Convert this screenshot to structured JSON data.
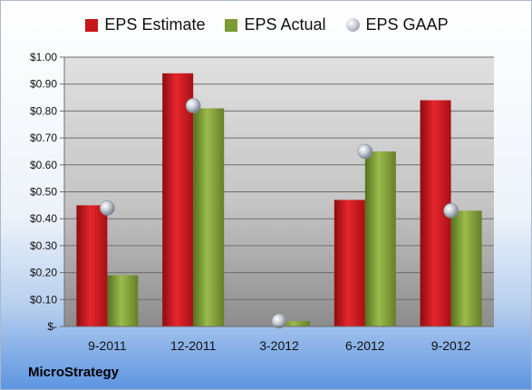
{
  "colors": {
    "estimate": "#c8161d",
    "actual": "#7c9a35",
    "gaap": "#b8bec8"
  },
  "legend": [
    {
      "label": "EPS Estimate",
      "key": "estimate"
    },
    {
      "label": "EPS Actual",
      "key": "actual"
    },
    {
      "label": "EPS GAAP",
      "key": "gaap"
    }
  ],
  "company": "MicroStrategy",
  "chart_data": {
    "type": "bar",
    "categories": [
      "9-2011",
      "12-2011",
      "3-2012",
      "6-2012",
      "9-2012"
    ],
    "series": [
      {
        "name": "EPS Estimate",
        "type": "bar",
        "values": [
          0.45,
          0.94,
          null,
          0.47,
          0.84
        ]
      },
      {
        "name": "EPS Actual",
        "type": "bar",
        "values": [
          0.19,
          0.81,
          0.02,
          0.65,
          0.43
        ]
      },
      {
        "name": "EPS GAAP",
        "type": "scatter",
        "values": [
          0.44,
          0.82,
          0.02,
          0.65,
          0.43
        ]
      }
    ],
    "ylim": [
      0,
      1.0
    ],
    "yticks": [
      0,
      0.1,
      0.2,
      0.3,
      0.4,
      0.5,
      0.6,
      0.7,
      0.8,
      0.9,
      1.0
    ],
    "ytick_labels": [
      "$-",
      "$0.10",
      "$0.20",
      "$0.30",
      "$0.40",
      "$0.50",
      "$0.60",
      "$0.70",
      "$0.80",
      "$0.90",
      "$1.00"
    ],
    "grid": true,
    "legend_position": "top"
  }
}
